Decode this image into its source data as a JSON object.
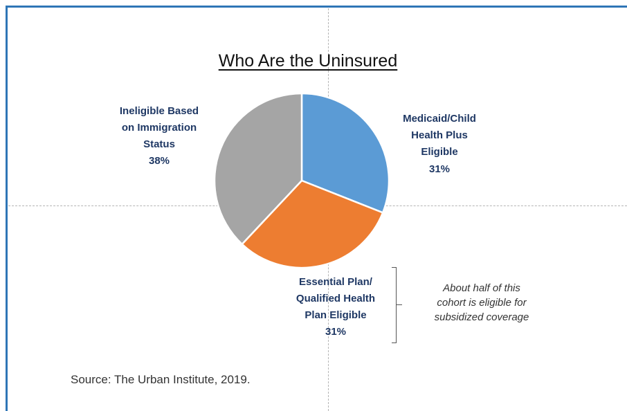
{
  "chart_data": {
    "type": "pie",
    "title": "Who Are the Uninsured",
    "slices": [
      {
        "label": "Medicaid/Child\nHealth Plus\nEligible",
        "value": 31,
        "value_label": "31%",
        "color": "#5b9bd5"
      },
      {
        "label": "Essential Plan/\nQualified Health\nPlan Eligible",
        "value": 31,
        "value_label": "31%",
        "color": "#ed7d31"
      },
      {
        "label": "Ineligible Based\non Immigration\nStatus",
        "value": 38,
        "value_label": "38%",
        "color": "#a5a5a5"
      }
    ],
    "annotation": "About half of this\ncohort is eligible for\nsubsidized coverage",
    "source": "Source:  The Urban Institute, 2019."
  }
}
